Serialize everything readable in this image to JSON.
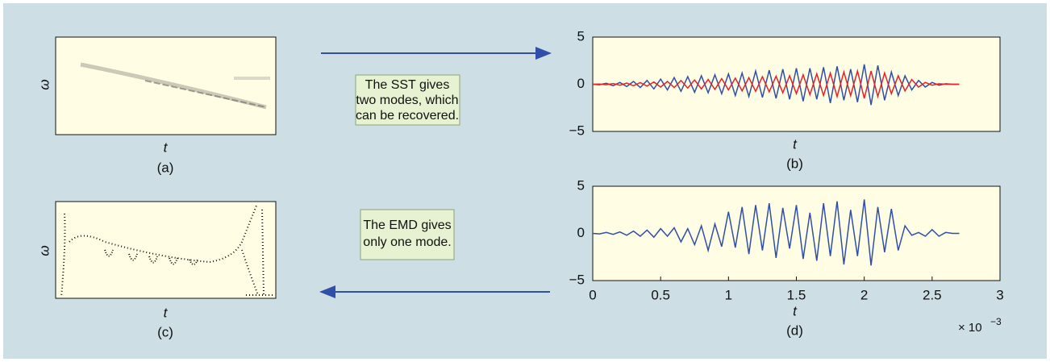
{
  "panel_a": {
    "ylabel": "ω",
    "xlabel": "t",
    "caption": "(a)"
  },
  "panel_c": {
    "ylabel": "ω",
    "xlabel": "t",
    "caption": "(c)"
  },
  "notes": [
    {
      "lines": [
        "The SST gives",
        "two modes, which",
        "can be recovered."
      ]
    },
    {
      "lines": [
        "The EMD gives",
        "only one mode."
      ]
    }
  ],
  "chart_data": [
    {
      "type": "line",
      "xlabel": "t",
      "caption": "(b)",
      "xlim": [
        0,
        3
      ],
      "ylim": [
        -5,
        5
      ],
      "yticks": [
        {
          "value": -5,
          "label": "−5"
        },
        0,
        5
      ],
      "x": [
        0,
        0.05,
        0.1,
        0.15,
        0.2,
        0.25,
        0.3,
        0.35,
        0.4,
        0.45,
        0.5,
        0.55,
        0.6,
        0.65,
        0.7,
        0.75,
        0.8,
        0.85,
        0.9,
        0.95,
        1,
        1.05,
        1.1,
        1.15,
        1.2,
        1.25,
        1.3,
        1.35,
        1.4,
        1.45,
        1.5,
        1.55,
        1.6,
        1.65,
        1.7,
        1.75,
        1.8,
        1.85,
        1.9,
        1.95,
        2,
        2.05,
        2.1,
        2.15,
        2.2,
        2.25,
        2.3,
        2.35,
        2.4,
        2.45,
        2.5,
        2.55,
        2.6,
        2.65,
        2.7
      ],
      "series": [
        {
          "color": "#2f4fa8",
          "values": [
            0,
            -0.05,
            0.1,
            -0.15,
            0.2,
            -0.25,
            0.3,
            -0.35,
            0.4,
            -0.5,
            0.55,
            -0.6,
            0.7,
            -0.75,
            0.8,
            -0.85,
            0.9,
            -0.9,
            1,
            -1,
            1.1,
            -1.2,
            1.2,
            -1.3,
            1.4,
            -1.4,
            1.5,
            -1.5,
            1.6,
            -1.6,
            1.7,
            -1.8,
            1.7,
            -1.6,
            1.8,
            -2,
            1.9,
            -1.7,
            1.6,
            -1.9,
            2.1,
            -2.2,
            2,
            -1.7,
            1.3,
            -1.2,
            0.9,
            -0.6,
            0.4,
            -0.3,
            0.2,
            -0.1,
            0.05,
            0,
            0
          ]
        },
        {
          "color": "#e8202a",
          "values": [
            0,
            0.02,
            -0.05,
            0.08,
            -0.1,
            0.12,
            -0.15,
            0.18,
            -0.2,
            0.25,
            -0.3,
            0.3,
            -0.35,
            0.4,
            -0.4,
            0.45,
            -0.5,
            0.5,
            -0.55,
            0.6,
            -0.6,
            0.65,
            -0.7,
            0.7,
            -0.75,
            0.8,
            -0.8,
            0.85,
            -0.9,
            0.9,
            -1,
            1,
            -1.1,
            1.1,
            -1.2,
            1.2,
            -1.3,
            1.3,
            -1.2,
            1.4,
            -1.5,
            1.4,
            -1.3,
            1.2,
            -1,
            0.9,
            -0.7,
            0.5,
            -0.3,
            0.2,
            -0.1,
            0.05,
            0,
            0,
            0
          ]
        }
      ]
    },
    {
      "type": "line",
      "xlabel": "t",
      "caption": "(d)",
      "x_multiplier": "× 10",
      "x_exponent": "−3",
      "xlim": [
        0,
        3
      ],
      "ylim": [
        -5,
        5
      ],
      "xticks": [
        0,
        0.5,
        1,
        1.5,
        2,
        2.5,
        3
      ],
      "yticks": [
        {
          "value": -5,
          "label": "−5"
        },
        0,
        5
      ],
      "x": [
        0,
        0.05,
        0.1,
        0.15,
        0.2,
        0.25,
        0.3,
        0.35,
        0.4,
        0.45,
        0.5,
        0.55,
        0.6,
        0.65,
        0.7,
        0.75,
        0.8,
        0.85,
        0.9,
        0.95,
        1,
        1.05,
        1.1,
        1.15,
        1.2,
        1.25,
        1.3,
        1.35,
        1.4,
        1.45,
        1.5,
        1.55,
        1.6,
        1.65,
        1.7,
        1.75,
        1.8,
        1.85,
        1.9,
        1.95,
        2,
        2.05,
        2.1,
        2.15,
        2.2,
        2.25,
        2.3,
        2.35,
        2.4,
        2.45,
        2.5,
        2.55,
        2.6,
        2.65,
        2.7
      ],
      "series": [
        {
          "color": "#2f4fa8",
          "values": [
            0,
            -0.05,
            0.1,
            -0.1,
            0.15,
            -0.2,
            0.25,
            -0.3,
            0.35,
            -0.4,
            0.5,
            -0.3,
            0.6,
            -0.9,
            0.5,
            -1.2,
            0.8,
            -1.8,
            1,
            -1.4,
            2.3,
            -1.5,
            2.8,
            -2.2,
            3,
            -1.8,
            3.2,
            -2.6,
            2.7,
            -1.6,
            3,
            -2.7,
            2.2,
            -2.9,
            3.2,
            -2.4,
            3.4,
            -3.3,
            2.5,
            -2.4,
            3.6,
            -3.4,
            2.8,
            -2,
            2.6,
            -1.8,
            0.8,
            -0.2,
            0.1,
            -0.3,
            0.4,
            -0.3,
            0.1,
            0,
            0
          ]
        }
      ]
    }
  ]
}
